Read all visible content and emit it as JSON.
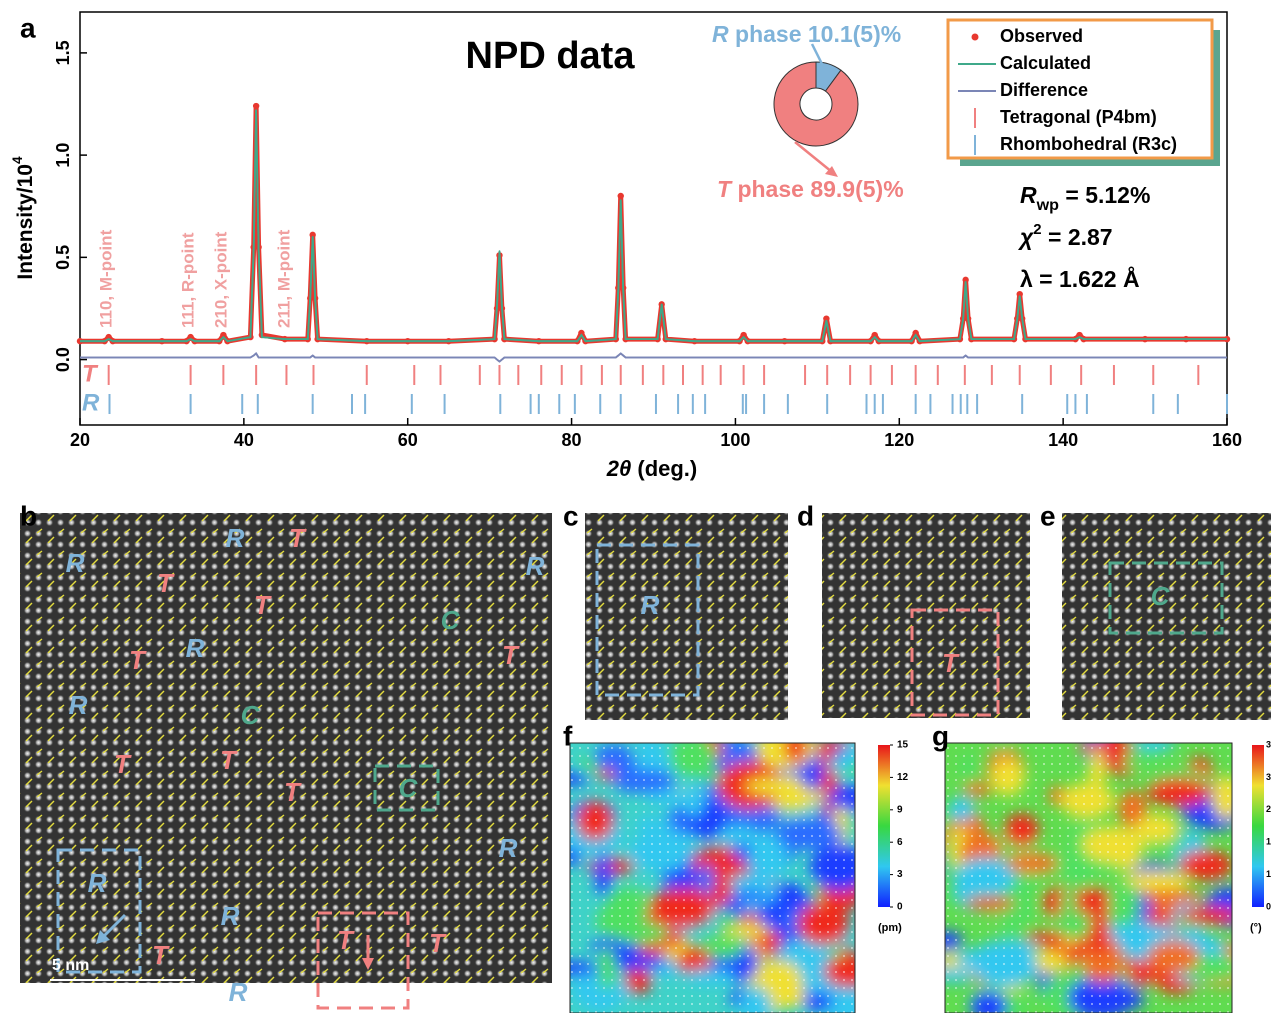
{
  "panel_labels": [
    "a",
    "b",
    "c",
    "d",
    "e",
    "f",
    "g"
  ],
  "chart_data": [
    {
      "type": "line",
      "title": "NPD data",
      "x_label": {
        "symbol": "2θ",
        "text": " (deg.)"
      },
      "y_label": {
        "text": "Intensity/10",
        "sup": "4"
      },
      "xlim": [
        20,
        160
      ],
      "ylim": [
        -0.32,
        1.7
      ],
      "xticks": [
        20,
        40,
        60,
        80,
        100,
        120,
        140,
        160
      ],
      "yticks": [
        {
          "value": 0,
          "label": "0.0"
        },
        {
          "value": 0.5,
          "label": "0.5"
        },
        {
          "value": 1,
          "label": "1.0"
        },
        {
          "value": 1.5,
          "label": "1.5"
        }
      ],
      "x": [
        20,
        23,
        23.5,
        24,
        30,
        33,
        33.5,
        34,
        37,
        37.5,
        38,
        40.8,
        41.2,
        41.5,
        41.8,
        42.2,
        45,
        47.8,
        48.1,
        48.4,
        48.7,
        49,
        55,
        60,
        65,
        70.6,
        70.9,
        71.2,
        71.5,
        71.8,
        76,
        80.7,
        81.2,
        81.7,
        85.4,
        85.7,
        86,
        86.3,
        86.6,
        90.5,
        91,
        91.5,
        95,
        100.5,
        101,
        101.5,
        106,
        110.6,
        111.1,
        111.6,
        116.5,
        117,
        117.5,
        121.5,
        122,
        122.5,
        127.4,
        127.8,
        128.1,
        128.4,
        128.8,
        134,
        134.4,
        134.7,
        135,
        135.4,
        141.5,
        142,
        142.5,
        150,
        155,
        160
      ],
      "series": [
        {
          "name": "Observed",
          "color": "#e8382f",
          "markers": true,
          "values": [
            0.09,
            0.09,
            0.11,
            0.09,
            0.09,
            0.09,
            0.11,
            0.09,
            0.09,
            0.12,
            0.09,
            0.11,
            0.55,
            1.24,
            0.55,
            0.12,
            0.1,
            0.1,
            0.3,
            0.61,
            0.3,
            0.1,
            0.09,
            0.09,
            0.09,
            0.1,
            0.25,
            0.51,
            0.25,
            0.1,
            0.09,
            0.09,
            0.13,
            0.09,
            0.1,
            0.35,
            0.8,
            0.35,
            0.1,
            0.1,
            0.27,
            0.1,
            0.09,
            0.09,
            0.12,
            0.09,
            0.09,
            0.09,
            0.2,
            0.09,
            0.09,
            0.12,
            0.09,
            0.09,
            0.13,
            0.09,
            0.1,
            0.2,
            0.39,
            0.2,
            0.1,
            0.1,
            0.2,
            0.32,
            0.2,
            0.1,
            0.1,
            0.12,
            0.1,
            0.1,
            0.1,
            0.1
          ]
        },
        {
          "name": "Calculated",
          "color": "#3fa98a",
          "markers": false,
          "values": [
            0.09,
            0.09,
            0.1,
            0.09,
            0.09,
            0.09,
            0.1,
            0.09,
            0.09,
            0.11,
            0.09,
            0.11,
            0.54,
            1.22,
            0.54,
            0.11,
            0.1,
            0.1,
            0.3,
            0.6,
            0.3,
            0.1,
            0.09,
            0.09,
            0.09,
            0.1,
            0.26,
            0.53,
            0.26,
            0.1,
            0.09,
            0.09,
            0.12,
            0.09,
            0.1,
            0.34,
            0.78,
            0.34,
            0.1,
            0.1,
            0.27,
            0.1,
            0.09,
            0.09,
            0.11,
            0.09,
            0.09,
            0.09,
            0.19,
            0.09,
            0.09,
            0.11,
            0.09,
            0.09,
            0.12,
            0.09,
            0.1,
            0.2,
            0.38,
            0.2,
            0.1,
            0.1,
            0.2,
            0.31,
            0.2,
            0.1,
            0.1,
            0.11,
            0.1,
            0.1,
            0.1,
            0.1
          ]
        },
        {
          "name": "Difference",
          "color": "#7b86b6",
          "markers": false,
          "values": [
            0.01,
            0.01,
            0.01,
            0.01,
            0.01,
            0.01,
            0.01,
            0.01,
            0.01,
            0.01,
            0.01,
            0.01,
            0.02,
            0.03,
            0.01,
            0.01,
            0.01,
            0.01,
            0.01,
            0.02,
            0.01,
            0.01,
            0.01,
            0.01,
            0.01,
            0.01,
            0.0,
            -0.01,
            0.0,
            0.01,
            0.01,
            0.01,
            0.01,
            0.01,
            0.01,
            0.02,
            0.03,
            0.02,
            0.01,
            0.01,
            0.01,
            0.01,
            0.01,
            0.01,
            0.01,
            0.01,
            0.01,
            0.01,
            0.01,
            0.01,
            0.01,
            0.01,
            0.01,
            0.01,
            0.01,
            0.01,
            0.01,
            0.01,
            0.02,
            0.01,
            0.01,
            0.01,
            0.01,
            0.01,
            0.01,
            0.01,
            0.01,
            0.01,
            0.01,
            0.01,
            0.01,
            0.01
          ]
        }
      ],
      "reflections": [
        {
          "name": "Tetragonal (P4bm)",
          "row_label": "T",
          "color": "#f08080",
          "positions": [
            23.5,
            33.5,
            37.5,
            41.5,
            45.2,
            48.5,
            55,
            60.8,
            64,
            68.8,
            71.2,
            73.5,
            76.3,
            78.8,
            81.2,
            83.7,
            86,
            88.7,
            91.2,
            93.6,
            96,
            98.2,
            101,
            103.5,
            108.5,
            111.2,
            114,
            116.5,
            119.1,
            122,
            124.7,
            128,
            131.3,
            134.7,
            138.5,
            142.2,
            146.2,
            151,
            156.5
          ]
        },
        {
          "name": "Rhombohedral (R3c)",
          "row_label": "R",
          "color": "#7fb3d9",
          "positions": [
            23.6,
            33.5,
            39.8,
            41.7,
            48.4,
            53.2,
            54.8,
            60.5,
            64.5,
            71.3,
            75,
            76,
            78.5,
            80.4,
            83.5,
            86,
            90.3,
            93,
            94.8,
            96.3,
            100.9,
            101.3,
            103.5,
            106.4,
            111.2,
            116,
            117,
            118,
            122,
            123.8,
            126.5,
            127.5,
            128.3,
            129.5,
            135,
            140.5,
            141.5,
            142.9,
            151,
            154,
            160
          ]
        }
      ],
      "annotations": [
        "110, M-point",
        "111, R-point",
        "210, X-point",
        "211, M-point"
      ],
      "statistics": [
        {
          "symbol": "R",
          "sub": "wp",
          "text": " = 5.12%"
        },
        {
          "symbol": "χ",
          "sup": "2",
          "text": " = 2.87"
        },
        {
          "symbol": "",
          "text": "λ = 1.622 Å"
        }
      ],
      "inset": {
        "type": "pie",
        "values": [
          10.1,
          89.9
        ],
        "colors": [
          "#7fb3d9",
          "#f08080"
        ],
        "labels": [
          {
            "symbol": "R",
            "text": " phase 10.1(5)%"
          },
          {
            "symbol": "T",
            "text": " phase 89.9(5)%"
          }
        ]
      }
    }
  ],
  "colorbars": [
    {
      "panel": "f",
      "ylim": [
        0,
        15
      ],
      "yticks": [
        0,
        3,
        6,
        9,
        12,
        15
      ],
      "unit": "(pm)"
    },
    {
      "panel": "g",
      "visible_labels": [
        "3",
        "3",
        "2",
        "1",
        "1",
        "0"
      ],
      "unit": "(°)"
    }
  ],
  "phase_colors": {
    "R": "#7fb3d9",
    "T": "#f08080",
    "C": "#4fa88c"
  },
  "micrographs": {
    "b": {
      "labels": [
        "R",
        "R",
        "T",
        "T",
        "T",
        "R",
        "C",
        "T",
        "T",
        "R",
        "R",
        "C",
        "T",
        "T",
        "T",
        "C",
        "R",
        "R",
        "T",
        "R",
        "R",
        "T",
        "T"
      ],
      "scale_bar": "5 nm"
    },
    "c": {
      "labels": [
        "R"
      ]
    },
    "d": {
      "labels": [
        "T"
      ]
    },
    "e": {
      "labels": [
        "C"
      ]
    }
  }
}
